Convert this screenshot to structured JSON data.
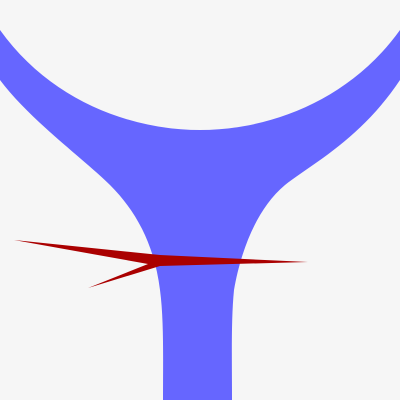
{
  "scene": {
    "background_color": "#f6f6f6",
    "shapes": [
      {
        "name": "blue-y-shape",
        "color": "#6666ff"
      },
      {
        "name": "red-arrow-shape",
        "color": "#aa0000"
      }
    ]
  }
}
